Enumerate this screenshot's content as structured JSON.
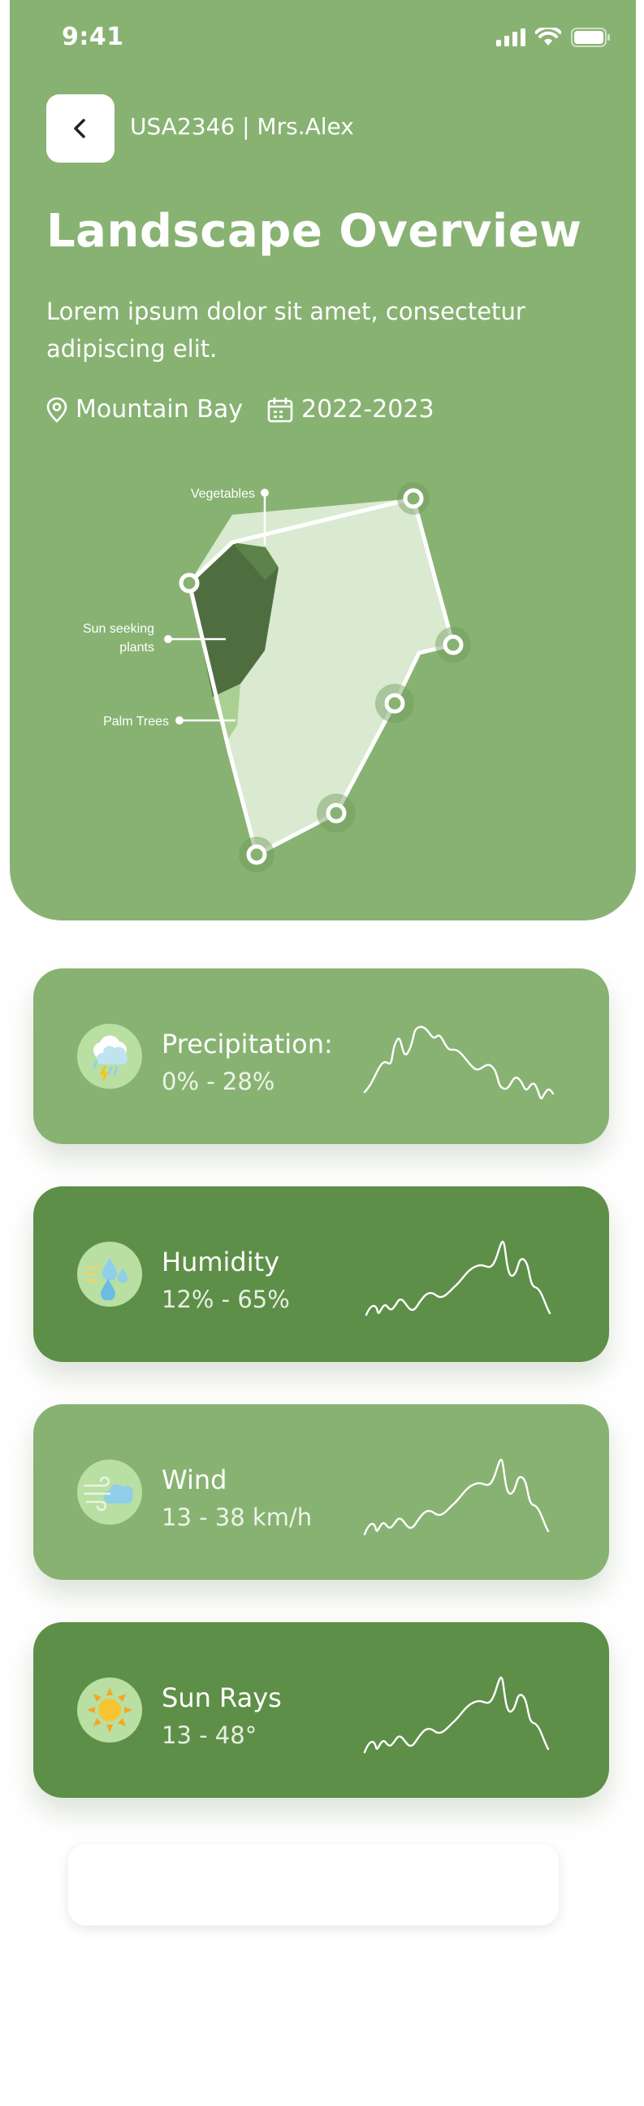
{
  "status_bar": {
    "time": "9:41"
  },
  "header": {
    "user_id": "USA2346 | Mrs.Alex",
    "title": "Landscape Overview",
    "description": "Lorem ipsum dolor sit amet, consectetur adipiscing elit.",
    "location": "Mountain Bay",
    "period": "2022-2023"
  },
  "map": {
    "labels": {
      "vegetables": "Vegetables",
      "sun_line1": "Sun seeking",
      "sun_line2": "plants",
      "palm": "Palm Trees"
    }
  },
  "cards": [
    {
      "label": "Precipitation:",
      "value": "0% - 28%",
      "icon": "rain-cloud-icon",
      "style": "light"
    },
    {
      "label": "Humidity",
      "value": "12% - 65%",
      "icon": "water-drops-icon",
      "style": "dark"
    },
    {
      "label": "Wind",
      "value": "13 - 38 km/h",
      "icon": "wind-icon",
      "style": "light"
    },
    {
      "label": "Sun Rays",
      "value": "13 - 48°",
      "icon": "sun-icon",
      "style": "dark"
    }
  ],
  "colors": {
    "hero": "#88b272",
    "card_light": "#88b272",
    "card_dark": "#5e8f48"
  }
}
